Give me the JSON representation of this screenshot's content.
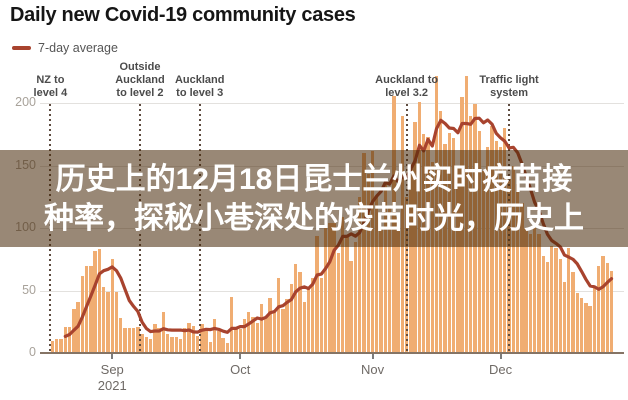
{
  "title": "Daily new Covid-19 community cases",
  "legend": {
    "label": "7-day average"
  },
  "overlay": {
    "line1": "历史上的12月18日昆士兰州实时疫苗接",
    "line2": "种率，探秘小巷深处的疫苗时光，历史上",
    "bg": "rgba(70,38,6,0.55)",
    "text_color": "#ffffff"
  },
  "colors": {
    "bar": "#f0ad72",
    "line": "#a8432e",
    "grid": "#e3e1de",
    "axis": "#857465",
    "dotted": "#5f4c40",
    "annotation_text": "#4b4b4b",
    "y_label": "#a8a29a",
    "x_label": "#6f6a66",
    "tick": "#7c7c7c",
    "title_text": "#161616",
    "legend_text": "#555555"
  },
  "chart_data": {
    "type": "bar",
    "title": "Daily new Covid-19 community cases",
    "series_label": "7-day average",
    "start_date": "2021-08-18",
    "x_unit": "day",
    "ylim": [
      0,
      234
    ],
    "y_ticks": [
      0,
      50,
      100,
      150,
      200
    ],
    "grid": true,
    "x_ticks": [
      {
        "label": "Sep",
        "sublabel": "2021",
        "day": 14
      },
      {
        "label": "Oct",
        "day": 44
      },
      {
        "label": "Nov",
        "day": 75
      },
      {
        "label": "Dec",
        "day": 105
      }
    ],
    "annotations": [
      {
        "lines": [
          "NZ to",
          "level 4"
        ],
        "day": -0.5
      },
      {
        "lines": [
          "Outside",
          "Auckland",
          "to level 2"
        ],
        "day": 20.5
      },
      {
        "lines": [
          "Auckland",
          "to level 3"
        ],
        "day": 34.5
      },
      {
        "lines": [
          "Auckland to",
          "level 3.2"
        ],
        "day": 83
      },
      {
        "lines": [
          "Traffic light",
          "system"
        ],
        "day": 107
      }
    ],
    "values": [
      10,
      11,
      11,
      21,
      21,
      35,
      41,
      62,
      70,
      70,
      82,
      83,
      53,
      49,
      75,
      49,
      28,
      20,
      20,
      20,
      21,
      15,
      13,
      11,
      23,
      20,
      33,
      15,
      13,
      13,
      11,
      20,
      24,
      22,
      14,
      23,
      19,
      9,
      27,
      18,
      12,
      8,
      45,
      19,
      19,
      27,
      33,
      29,
      24,
      39,
      29,
      44,
      34,
      60,
      35,
      43,
      55,
      71,
      65,
      41,
      51,
      60,
      94,
      60,
      102,
      104,
      104,
      80,
      109,
      94,
      74,
      89,
      125,
      160,
      143,
      162,
      126,
      100,
      139,
      116,
      206,
      109,
      190,
      125,
      147,
      185,
      201,
      175,
      173,
      153,
      222,
      194,
      167,
      176,
      172,
      149,
      205,
      222,
      190,
      199,
      178,
      146,
      165,
      182,
      170,
      165,
      180,
      140,
      150,
      135,
      120,
      100,
      95,
      103,
      95,
      78,
      73,
      86,
      84,
      75,
      57,
      84,
      65,
      48,
      44,
      40,
      38,
      52,
      70,
      78,
      72,
      66
    ]
  }
}
